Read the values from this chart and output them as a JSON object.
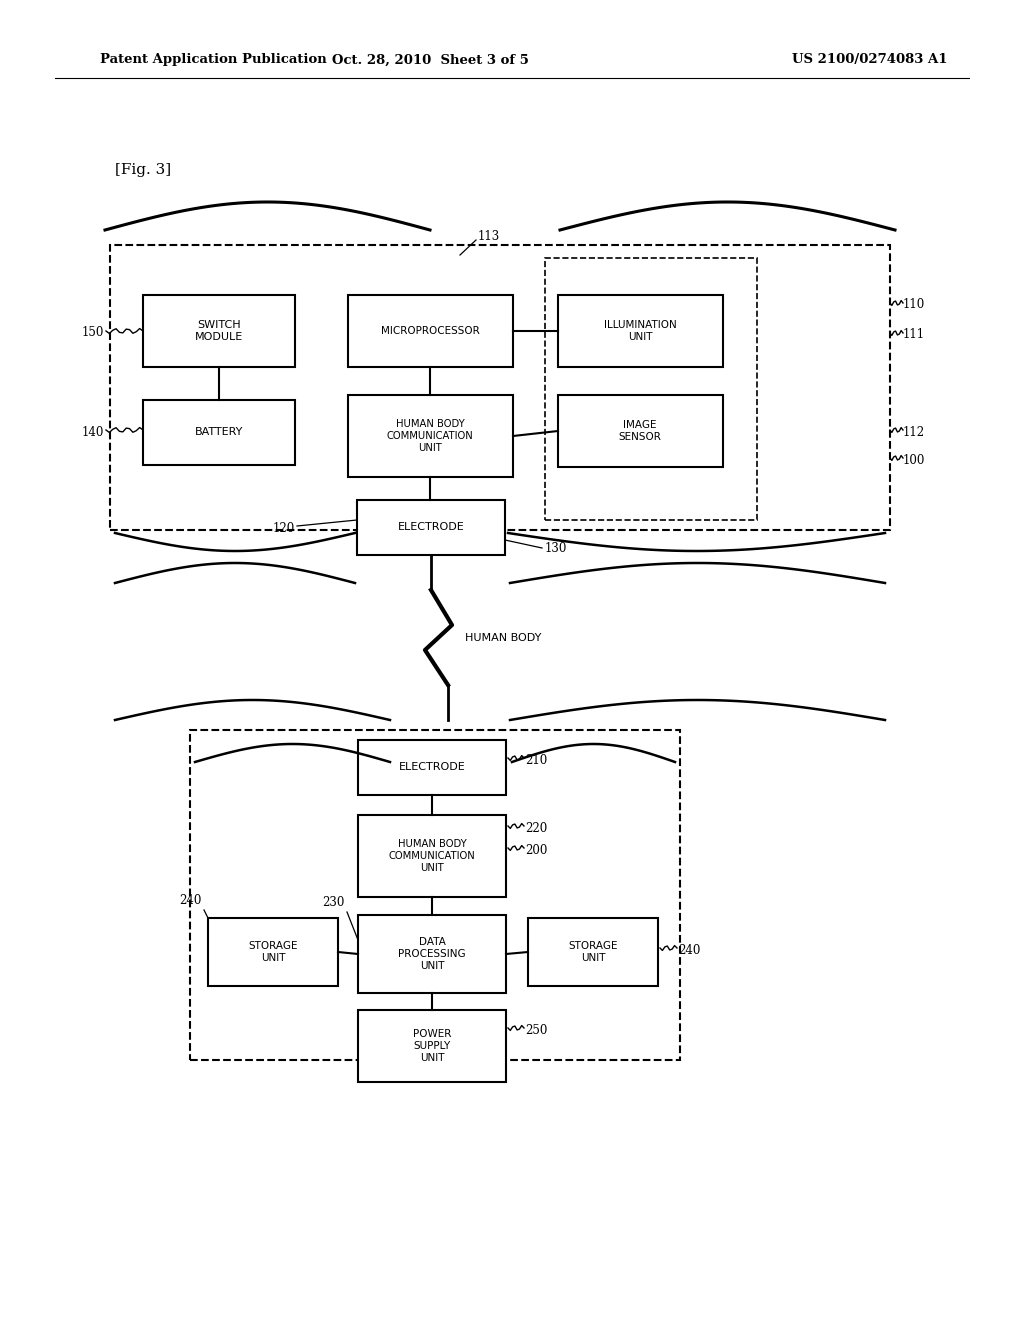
{
  "bg_color": "#ffffff",
  "header_left": "Patent Application Publication",
  "header_mid": "Oct. 28, 2010  Sheet 3 of 5",
  "header_right": "US 2100/0274083 A1",
  "fig_label": "[Fig. 3]"
}
